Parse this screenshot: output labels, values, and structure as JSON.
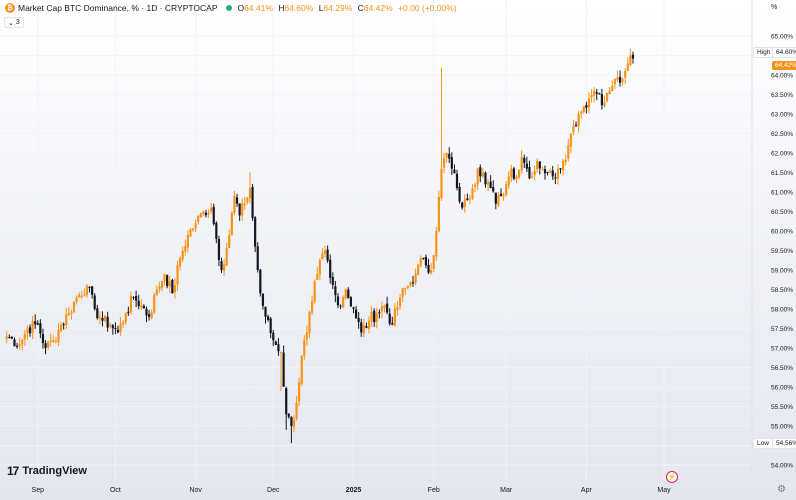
{
  "header": {
    "logo_letter": "₿",
    "title": "Market Cap BTC Dominance, % · 1D · CRYPTOCAP",
    "ohlc": {
      "o_label": "O",
      "o": "64.41%",
      "h_label": "H",
      "h": "64.60%",
      "l_label": "L",
      "l": "64.29%",
      "c_label": "C",
      "c": "64.42%",
      "change": "+0.00 (+0.00%)"
    }
  },
  "axis_unit_label": "%",
  "collapse_badge": {
    "count": "3"
  },
  "watermark": {
    "icon": "17",
    "text": "TradingView"
  },
  "badges": {
    "high_label": "High",
    "high_value": "64.60%",
    "low_label": "Low",
    "low_value": "54.56%",
    "last_price": "64.42%"
  },
  "colors": {
    "up": "#f7931a",
    "down": "#131722",
    "background_top": "#ffffff",
    "background_bottom": "#e4e6ee",
    "grid": "#f0f3fa"
  },
  "icons": {
    "alert": "lightning-icon",
    "settings": "gear-icon"
  },
  "chart_data": {
    "type": "candlestick",
    "title": "Market Cap BTC Dominance, % · 1D · CRYPTOCAP",
    "y_unit": "%",
    "ylim": [
      53.7,
      65.3
    ],
    "y_ticks": [
      {
        "value": 65.0,
        "label": "65.00%"
      },
      {
        "value": 64.5,
        "label": "64.50%"
      },
      {
        "value": 64.0,
        "label": "64.00%"
      },
      {
        "value": 63.5,
        "label": "63.50%"
      },
      {
        "value": 63.0,
        "label": "63.00%"
      },
      {
        "value": 62.5,
        "label": "62.50%"
      },
      {
        "value": 62.0,
        "label": "62.00%"
      },
      {
        "value": 61.5,
        "label": "61.50%"
      },
      {
        "value": 61.0,
        "label": "61.00%"
      },
      {
        "value": 60.5,
        "label": "60.50%"
      },
      {
        "value": 60.0,
        "label": "60.00%"
      },
      {
        "value": 59.5,
        "label": "59.50%"
      },
      {
        "value": 59.0,
        "label": "59.00%"
      },
      {
        "value": 58.5,
        "label": "58.50%"
      },
      {
        "value": 58.0,
        "label": "58.00%"
      },
      {
        "value": 57.5,
        "label": "57.50%"
      },
      {
        "value": 57.0,
        "label": "57.00%"
      },
      {
        "value": 56.5,
        "label": "56.50%"
      },
      {
        "value": 56.0,
        "label": "56.00%"
      },
      {
        "value": 55.5,
        "label": "55.50%"
      },
      {
        "value": 55.0,
        "label": "55.00%"
      },
      {
        "value": 54.5,
        "label": "54.50%"
      },
      {
        "value": 54.0,
        "label": "54.00%"
      }
    ],
    "x_ticks": [
      {
        "day": 12,
        "label": "Sep"
      },
      {
        "day": 42,
        "label": "Oct"
      },
      {
        "day": 73,
        "label": "Nov"
      },
      {
        "day": 103,
        "label": "Dec"
      },
      {
        "day": 134,
        "label": "2025",
        "bold": true
      },
      {
        "day": 165,
        "label": "Feb"
      },
      {
        "day": 193,
        "label": "Mar"
      },
      {
        "day": 224,
        "label": "Apr"
      },
      {
        "day": 254,
        "label": "May"
      }
    ],
    "day_range": [
      -2.6,
      288
    ],
    "grid": true,
    "high": 64.6,
    "low": 54.56,
    "last": 64.42,
    "anchors": [
      [
        0,
        57.3
      ],
      [
        5,
        57.1
      ],
      [
        8,
        57.5
      ],
      [
        12,
        57.6
      ],
      [
        15,
        57.0
      ],
      [
        18,
        57.2
      ],
      [
        21,
        57.6
      ],
      [
        24,
        57.9
      ],
      [
        27,
        58.3
      ],
      [
        31,
        58.6
      ],
      [
        34,
        58.0
      ],
      [
        37,
        57.7
      ],
      [
        40,
        57.6
      ],
      [
        43,
        57.4
      ],
      [
        46,
        57.9
      ],
      [
        49,
        58.3
      ],
      [
        52,
        58.1
      ],
      [
        55,
        57.8
      ],
      [
        58,
        58.5
      ],
      [
        61,
        58.9
      ],
      [
        64,
        58.4
      ],
      [
        67,
        59.3
      ],
      [
        70,
        59.9
      ],
      [
        73,
        60.2
      ],
      [
        76,
        60.5
      ],
      [
        79,
        60.6
      ],
      [
        81,
        59.8
      ],
      [
        83,
        59.0
      ],
      [
        86,
        59.9
      ],
      [
        88,
        60.9
      ],
      [
        90,
        60.4
      ],
      [
        92,
        60.7
      ],
      [
        94,
        61.1
      ],
      [
        96,
        59.6
      ],
      [
        98,
        58.4
      ],
      [
        100,
        57.8
      ],
      [
        103,
        57.2
      ],
      [
        106,
        56.9
      ],
      [
        108,
        55.3
      ],
      [
        110,
        55.0
      ],
      [
        112,
        55.6
      ],
      [
        114,
        56.8
      ],
      [
        116,
        57.4
      ],
      [
        118,
        58.2
      ],
      [
        120,
        58.9
      ],
      [
        123,
        59.5
      ],
      [
        125,
        58.8
      ],
      [
        128,
        58.1
      ],
      [
        131,
        58.5
      ],
      [
        134,
        58.0
      ],
      [
        137,
        57.4
      ],
      [
        140,
        57.7
      ],
      [
        143,
        57.9
      ],
      [
        146,
        58.1
      ],
      [
        149,
        57.6
      ],
      [
        152,
        58.3
      ],
      [
        155,
        58.6
      ],
      [
        158,
        58.9
      ],
      [
        161,
        59.3
      ],
      [
        164,
        59.0
      ],
      [
        166,
        60.0
      ],
      [
        168,
        61.6
      ],
      [
        170,
        62.0
      ],
      [
        172,
        61.6
      ],
      [
        174,
        61.1
      ],
      [
        176,
        60.6
      ],
      [
        178,
        60.8
      ],
      [
        180,
        61.1
      ],
      [
        182,
        61.6
      ],
      [
        184,
        61.5
      ],
      [
        187,
        61.1
      ],
      [
        189,
        60.7
      ],
      [
        191,
        60.9
      ],
      [
        193,
        61.2
      ],
      [
        195,
        61.6
      ],
      [
        197,
        61.4
      ],
      [
        199,
        61.9
      ],
      [
        201,
        61.6
      ],
      [
        203,
        61.4
      ],
      [
        205,
        61.8
      ],
      [
        207,
        61.6
      ],
      [
        209,
        61.5
      ],
      [
        211,
        61.4
      ],
      [
        213,
        61.6
      ],
      [
        215,
        61.8
      ],
      [
        217,
        62.2
      ],
      [
        219,
        62.7
      ],
      [
        221,
        63.0
      ],
      [
        223,
        63.2
      ],
      [
        225,
        63.4
      ],
      [
        227,
        63.6
      ],
      [
        229,
        63.5
      ],
      [
        231,
        63.3
      ],
      [
        233,
        63.6
      ],
      [
        235,
        63.9
      ],
      [
        237,
        63.8
      ],
      [
        239,
        64.1
      ],
      [
        240,
        64.3
      ],
      [
        241,
        64.5
      ],
      [
        242,
        64.42
      ]
    ],
    "spikes": [
      {
        "day": 168,
        "high": 64.2
      },
      {
        "day": 110,
        "low": 54.56
      },
      {
        "day": 108,
        "low": 54.9
      },
      {
        "day": 94,
        "high": 61.5
      },
      {
        "day": 106,
        "low": 55.9
      }
    ],
    "price_data_note": ""
  }
}
